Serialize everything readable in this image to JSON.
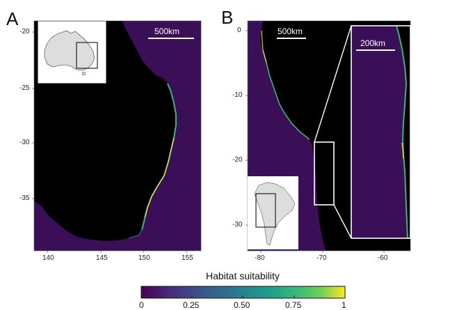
{
  "panels": {
    "a": {
      "letter": "A",
      "scale_bar": "500km",
      "x_ticks": [
        "140",
        "145",
        "150",
        "155"
      ],
      "y_ticks": [
        "-20",
        "-25",
        "-30",
        "-35"
      ]
    },
    "b": {
      "letter": "B",
      "scale_bar": "500km",
      "inset_scale_bar": "200km",
      "x_ticks": [
        "-80",
        "-70",
        "-60"
      ],
      "y_ticks": [
        "0",
        "-10",
        "-20",
        "-30"
      ]
    }
  },
  "colorbar": {
    "title": "Habitat suitability",
    "ticks": [
      "0",
      "0.25",
      "0.50",
      "0.75",
      "1"
    ],
    "colormap": "viridis"
  },
  "colors": {
    "ocean": "#3b0f57",
    "land": "#000000",
    "coast_high": "#fde725",
    "coast_mid": "#35b779",
    "coast_low": "#31688e"
  }
}
